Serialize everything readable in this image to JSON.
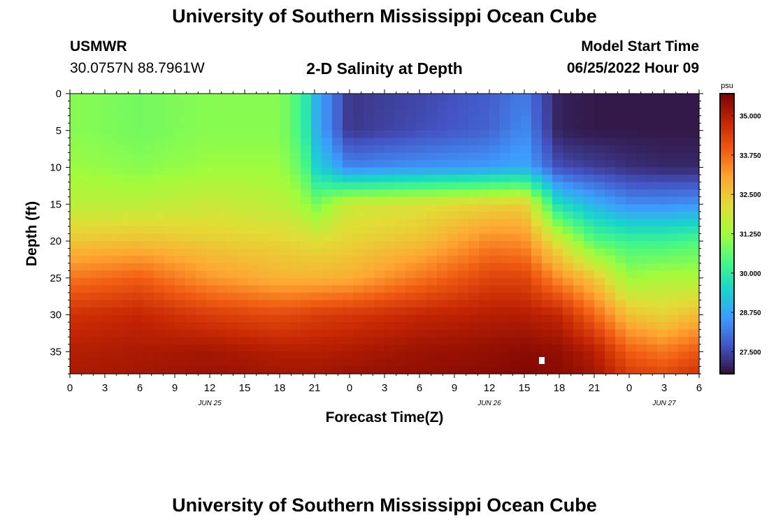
{
  "header": {
    "title": "University of Southern Mississippi Ocean Cube",
    "station_name": "USMWR",
    "station_coords": "30.0757N  88.7961W",
    "plot_title": "2-D Salinity at Depth",
    "model_label": "Model Start Time",
    "model_time": "06/25/2022 Hour 09"
  },
  "footer": {
    "title": "University of Southern Mississippi Ocean Cube"
  },
  "colors": {
    "colormap": [
      "#30123b",
      "#4454c4",
      "#3e9bfe",
      "#18d6cb",
      "#46f884",
      "#a2fc3c",
      "#e1dd37",
      "#fea632",
      "#f05b12",
      "#c42503",
      "#7a0403"
    ]
  },
  "chart_data": {
    "type": "heatmap",
    "xlabel": "Forecast Time(Z)",
    "ylabel": "Depth (ft)",
    "x_tick_labels": [
      "0",
      "3",
      "6",
      "9",
      "12",
      "15",
      "18",
      "21",
      "0",
      "3",
      "6",
      "9",
      "12",
      "15",
      "18",
      "21",
      "0",
      "3",
      "6"
    ],
    "x_range_hours": [
      0,
      54
    ],
    "date_labels": [
      {
        "text": "JUN 25",
        "hour": 12
      },
      {
        "text": "JUN 26",
        "hour": 36
      },
      {
        "text": "JUN 27",
        "hour": 51
      }
    ],
    "y_ticks": [
      0,
      5,
      10,
      15,
      20,
      25,
      30,
      35
    ],
    "ylim": [
      0,
      38
    ],
    "y_inverted": true,
    "colorbar": {
      "unit": "psu",
      "ticks": [
        "27.500",
        "28.750",
        "30.000",
        "31.250",
        "32.500",
        "33.750",
        "35.000"
      ],
      "range": [
        26.8,
        35.7
      ]
    },
    "profile_hours": [
      0,
      6,
      12,
      18,
      20,
      21,
      24,
      30,
      36,
      39,
      42,
      45,
      48,
      51,
      54
    ],
    "profile_depths_ft": [
      0,
      5,
      10,
      15,
      20,
      25,
      30,
      35,
      38
    ],
    "salinity": [
      [
        31.0,
        31.0,
        31.2,
        31.6,
        32.5,
        33.6,
        34.6,
        35.0,
        35.1
      ],
      [
        30.8,
        30.8,
        31.0,
        31.6,
        32.6,
        33.9,
        34.8,
        35.1,
        35.2
      ],
      [
        31.0,
        31.0,
        31.2,
        31.8,
        32.4,
        33.2,
        34.4,
        35.2,
        35.3
      ],
      [
        31.0,
        31.0,
        31.2,
        31.6,
        32.3,
        32.8,
        34.2,
        35.0,
        35.2
      ],
      [
        30.2,
        30.2,
        30.6,
        31.3,
        32.2,
        32.8,
        34.3,
        35.0,
        35.2
      ],
      [
        29.0,
        29.0,
        29.5,
        30.8,
        32.1,
        32.8,
        34.4,
        35.0,
        35.2
      ],
      [
        27.3,
        27.3,
        28.3,
        31.8,
        32.3,
        32.9,
        34.5,
        35.1,
        35.3
      ],
      [
        27.5,
        27.6,
        28.5,
        32.0,
        32.6,
        33.6,
        34.8,
        35.3,
        35.4
      ],
      [
        27.8,
        27.9,
        28.6,
        32.3,
        33.4,
        34.3,
        35.0,
        35.4,
        35.5
      ],
      [
        28.2,
        28.4,
        28.8,
        32.4,
        33.3,
        34.3,
        35.0,
        35.5,
        35.6
      ],
      [
        27.0,
        27.0,
        27.6,
        29.6,
        31.9,
        33.3,
        34.8,
        35.4,
        35.5
      ],
      [
        26.9,
        26.9,
        27.4,
        28.9,
        30.5,
        32.5,
        33.8,
        35.0,
        35.2
      ],
      [
        26.9,
        26.9,
        27.2,
        28.4,
        30.2,
        31.2,
        32.6,
        33.9,
        34.4
      ],
      [
        26.9,
        26.9,
        27.1,
        28.4,
        30.2,
        31.4,
        32.3,
        33.6,
        34.2
      ],
      [
        26.9,
        26.9,
        27.1,
        28.5,
        30.4,
        31.4,
        32.7,
        34.0,
        34.6
      ]
    ],
    "marker": {
      "hour": 40.5,
      "depth_ft": 36.2,
      "color": "#ffffff"
    }
  }
}
